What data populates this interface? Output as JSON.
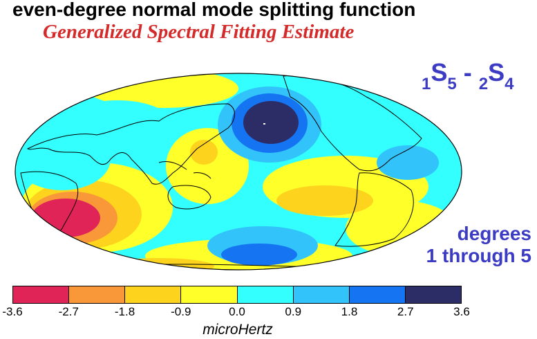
{
  "title": "even-degree normal mode splitting function",
  "subtitle": "Generalized Spectral Fitting Estimate",
  "mode_label": {
    "mode1_overtone": "1",
    "mode1_letter": "S",
    "mode1_degree": "5",
    "separator": " - ",
    "mode2_overtone": "2",
    "mode2_letter": "S",
    "mode2_degree": "4"
  },
  "degrees_line1": "degrees",
  "degrees_line2": "1 through 5",
  "colorbar": {
    "colors": [
      "#e02457",
      "#f99838",
      "#fdd31e",
      "#ffff2a",
      "#33ffff",
      "#33c3fb",
      "#1574f2",
      "#2c2c66"
    ],
    "tick_labels": [
      "-3.6",
      "-2.7",
      "-1.8",
      "-0.9",
      "0.0",
      "0.9",
      "1.8",
      "2.7",
      "3.6"
    ],
    "unit": "microHertz"
  },
  "map": {
    "projection": "hammer-aitoff",
    "ocean_base_color": "#33ffff",
    "coastlines": true
  }
}
